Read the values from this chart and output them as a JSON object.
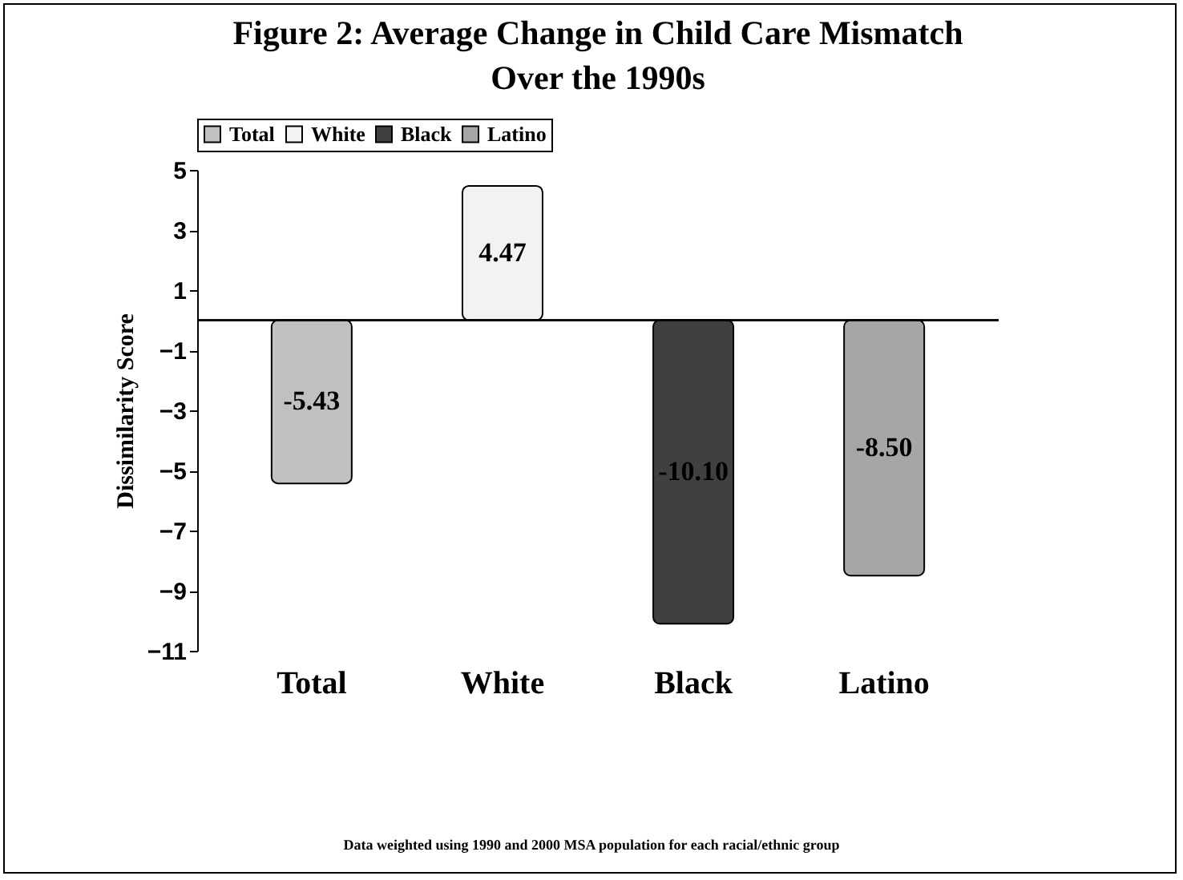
{
  "chart_data": {
    "type": "bar",
    "title": "Figure 2: Average Change in Child Care Mismatch Over the 1990s",
    "ylabel": "Dissimilarity Score",
    "categories": [
      "Total",
      "White",
      "Black",
      "Latino"
    ],
    "series": [
      {
        "name": "Total",
        "color": "#c0c0c0",
        "values": [
          -5.43,
          null,
          null,
          null
        ],
        "value_labels": [
          "-5.43",
          null,
          null,
          null
        ]
      },
      {
        "name": "White",
        "color": "#f2f2f2",
        "values": [
          null,
          4.47,
          null,
          null
        ],
        "value_labels": [
          null,
          "4.47",
          null,
          null
        ]
      },
      {
        "name": "Black",
        "color": "#404040",
        "values": [
          null,
          null,
          -10.1,
          null
        ],
        "value_labels": [
          null,
          null,
          "-10.10",
          null
        ]
      },
      {
        "name": "Latino",
        "color": "#a6a6a6",
        "values": [
          null,
          null,
          null,
          -8.5
        ],
        "value_labels": [
          null,
          null,
          null,
          "-8.50"
        ]
      }
    ],
    "ylim": [
      -11,
      5
    ],
    "yticks": [
      -11,
      -9,
      -7,
      -5,
      -3,
      -1,
      1,
      3,
      5
    ],
    "legend": "top",
    "annotations": [
      "Data weighted using 1990 and 2000 MSA population for each racial/ethnic group"
    ]
  }
}
